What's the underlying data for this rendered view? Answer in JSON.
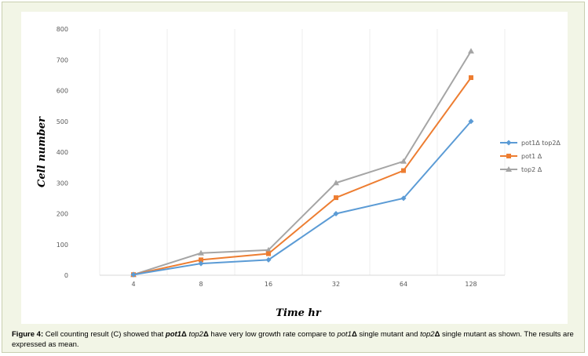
{
  "chart_data": {
    "type": "line",
    "categories": [
      "4",
      "8",
      "16",
      "32",
      "64",
      "128"
    ],
    "series": [
      {
        "name": "pot1Δ top2Δ",
        "values": [
          2,
          38,
          50,
          200,
          250,
          500
        ],
        "color": "#5b9bd5",
        "marker": "diamond"
      },
      {
        "name": "pot1 Δ",
        "values": [
          2,
          50,
          70,
          252,
          340,
          642
        ],
        "color": "#ed7d31",
        "marker": "square"
      },
      {
        "name": "top2 Δ",
        "values": [
          2,
          72,
          82,
          300,
          370,
          728
        ],
        "color": "#a5a5a5",
        "marker": "triangle"
      }
    ],
    "xlabel": "Time hr",
    "ylabel": "Cell number",
    "ylim": [
      0,
      800
    ],
    "yticks": [
      0,
      100,
      200,
      300,
      400,
      500,
      600,
      700,
      800
    ],
    "grid": "vertical",
    "legend": "right"
  },
  "caption": {
    "label": "Figure 4:",
    "parts": [
      {
        "text": " Cell counting result (C) showed that ",
        "style": "normal"
      },
      {
        "text": "pot1",
        "style": "italic-bold"
      },
      {
        "text": "Δ",
        "style": "bold"
      },
      {
        "text": " ",
        "style": "normal"
      },
      {
        "text": "top2",
        "style": "italic"
      },
      {
        "text": "Δ",
        "style": "bold"
      },
      {
        "text": " have very low growth rate compare to ",
        "style": "normal"
      },
      {
        "text": "pot1",
        "style": "italic"
      },
      {
        "text": "Δ",
        "style": "bold"
      },
      {
        "text": " single mutant and ",
        "style": "normal"
      },
      {
        "text": "top2",
        "style": "italic"
      },
      {
        "text": "Δ",
        "style": "bold"
      },
      {
        "text": " single mutant as shown. The results are expressed as mean.",
        "style": "normal"
      }
    ]
  }
}
